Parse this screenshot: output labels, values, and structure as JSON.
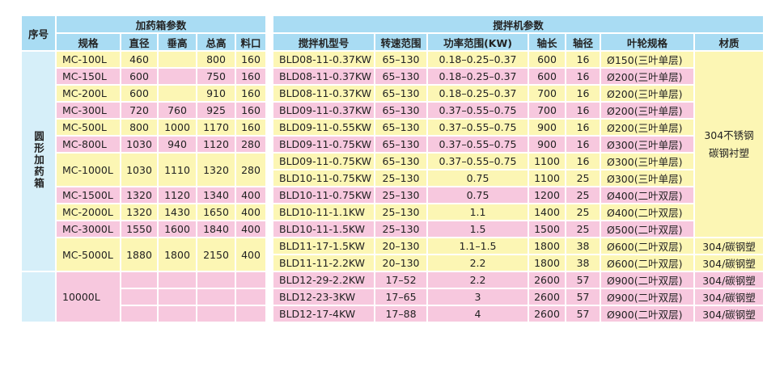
{
  "header": {
    "seq": "序号",
    "tank_group": "加药箱参数",
    "mixer_group": "搅拌机参数",
    "tank_columns": [
      "规格",
      "直径",
      "垂高",
      "总高",
      "料口"
    ],
    "mixer_columns": [
      "搅拌机型号",
      "转速范围",
      "功率范围(KW)",
      "轴长",
      "轴径",
      "叶轮规格",
      "材质"
    ]
  },
  "groups": [
    {
      "label": "圆形加药箱",
      "shared_material": [
        "304不锈钢",
        "碳钢衬塑"
      ],
      "tanks": [
        {
          "spec": "MC-100L",
          "diameter": "460",
          "total_height": "800",
          "inlet": "160",
          "mixers": [
            {
              "model": "BLD08-11-0.37KW",
              "speed": "65–130",
              "power": "0.18–0.25–0.37",
              "shaft_length": "600",
              "shaft_diameter": "16",
              "impeller": "Ø150(三叶单层)"
            }
          ]
        },
        {
          "spec": "MC-150L",
          "diameter": "600",
          "total_height": "750",
          "inlet": "160",
          "mixers": [
            {
              "model": "BLD08-11-0.37KW",
              "speed": "65–130",
              "power": "0.18–0.25–0.37",
              "shaft_length": "600",
              "shaft_diameter": "16",
              "impeller": "Ø200(三叶单层)"
            }
          ]
        },
        {
          "spec": "MC-200L",
          "diameter": "600",
          "total_height": "910",
          "inlet": "160",
          "mixers": [
            {
              "model": "BLD08-11-0.37KW",
              "speed": "65–130",
              "power": "0.18–0.25–0.37",
              "shaft_length": "700",
              "shaft_diameter": "16",
              "impeller": "Ø200(三叶单层)"
            }
          ]
        },
        {
          "spec": "MC-300L",
          "diameter": "720",
          "vertical_height": "760",
          "total_height": "925",
          "inlet": "160",
          "mixers": [
            {
              "model": "BLD09-11-0.37KW",
              "speed": "65–130",
              "power": "0.37–0.55–0.75",
              "shaft_length": "700",
              "shaft_diameter": "16",
              "impeller": "Ø200(三叶单层)"
            }
          ]
        },
        {
          "spec": "MC-500L",
          "diameter": "800",
          "vertical_height": "1000",
          "total_height": "1170",
          "inlet": "160",
          "mixers": [
            {
              "model": "BLD09-11-0.55KW",
              "speed": "65–130",
              "power": "0.37–0.55–0.75",
              "shaft_length": "900",
              "shaft_diameter": "16",
              "impeller": "Ø200(三叶单层)"
            }
          ]
        },
        {
          "spec": "MC-800L",
          "diameter": "1030",
          "vertical_height": "940",
          "total_height": "1120",
          "inlet": "280",
          "mixers": [
            {
              "model": "BLD09-11-0.75KW",
              "speed": "65–130",
              "power": "0.37–0.55–0.75",
              "shaft_length": "900",
              "shaft_diameter": "16",
              "impeller": "Ø300(三叶单层)"
            }
          ]
        },
        {
          "spec": "MC-1000L",
          "diameter": "1030",
          "vertical_height": "1110",
          "total_height": "1320",
          "inlet": "280",
          "mixers": [
            {
              "model": "BLD09-11-0.75KW",
              "speed": "65–130",
              "power": "0.37–0.55–0.75",
              "shaft_length": "1100",
              "shaft_diameter": "16",
              "impeller": "Ø300(三叶单层)"
            },
            {
              "model": "BLD10-11-0.75KW",
              "speed": "25–130",
              "power": "0.75",
              "shaft_length": "1100",
              "shaft_diameter": "25",
              "impeller": "Ø300(三叶单层)"
            }
          ]
        },
        {
          "spec": "MC-1500L",
          "diameter": "1320",
          "vertical_height": "1120",
          "total_height": "1340",
          "inlet": "400",
          "mixers": [
            {
              "model": "BLD10-11-0.75KW",
              "speed": "25–130",
              "power": "0.75",
              "shaft_length": "1200",
              "shaft_diameter": "25",
              "impeller": "Ø400(二叶双层)"
            }
          ]
        },
        {
          "spec": "MC-2000L",
          "diameter": "1320",
          "vertical_height": "1430",
          "total_height": "1650",
          "inlet": "400",
          "mixers": [
            {
              "model": "BLD10-11-1.1KW",
              "speed": "25–130",
              "power": "1.1",
              "shaft_length": "1400",
              "shaft_diameter": "25",
              "impeller": "Ø400(二叶双层)"
            }
          ]
        },
        {
          "spec": "MC-3000L",
          "diameter": "1550",
          "vertical_height": "1600",
          "total_height": "1840",
          "inlet": "400",
          "mixers": [
            {
              "model": "BLD10-11-1.5KW",
              "speed": "25–130",
              "power": "1.5",
              "shaft_length": "1500",
              "shaft_diameter": "25",
              "impeller": "Ø500(二叶双层)"
            }
          ]
        },
        {
          "spec": "MC-5000L",
          "diameter": "1880",
          "vertical_height": "1800",
          "total_height": "2150",
          "inlet": "400",
          "mixers": [
            {
              "model": "BLD11-17-1.5KW",
              "speed": "20–130",
              "power": "1.1–1.5",
              "shaft_length": "1800",
              "shaft_diameter": "38",
              "impeller": "Ø600(二叶双层)",
              "material": "304/碳钢塑"
            },
            {
              "model": "BLD11-11-2.2KW",
              "speed": "20–130",
              "power": "2.2",
              "shaft_length": "1800",
              "shaft_diameter": "38",
              "impeller": "Ø600(二叶双层)",
              "material": "304/碳钢塑"
            }
          ]
        }
      ]
    },
    {
      "tanks": [
        {
          "spec": "10000L",
          "mixers": [
            {
              "model": "BLD12-29-2.2KW",
              "speed": "17–52",
              "power": "2.2",
              "shaft_length": "2600",
              "shaft_diameter": "57",
              "impeller": "Ø900(二叶双层)",
              "material": "304/碳钢塑"
            },
            {
              "model": "BLD12-23-3KW",
              "speed": "17–65",
              "power": "3",
              "shaft_length": "2600",
              "shaft_diameter": "57",
              "impeller": "Ø900(二叶双层)",
              "material": "304/碳钢塑"
            },
            {
              "model": "BLD12-17-4KW",
              "speed": "17–88",
              "power": "4",
              "shaft_length": "2600",
              "shaft_diameter": "57",
              "impeller": "Ø900(二叶双层)",
              "material": "304/碳钢塑"
            }
          ]
        }
      ]
    }
  ]
}
